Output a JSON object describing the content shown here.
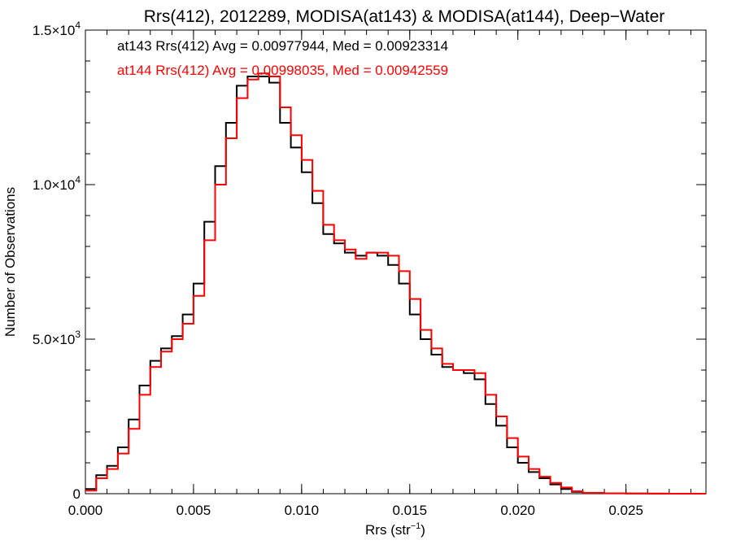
{
  "chart_data": {
    "type": "line",
    "title": "Rrs(412), 2012289, MODISA(at143) & MODISA(at144), Deep−Water",
    "xlabel_main": "Rrs (str",
    "xlabel_sup": "−1",
    "xlabel_close": ")",
    "ylabel": "Number of Observations",
    "xlim": [
      0.0,
      0.0287
    ],
    "ylim": [
      0,
      15000
    ],
    "x_ticks": [
      0.0,
      0.005,
      0.01,
      0.015,
      0.02,
      0.025
    ],
    "x_tick_labels": [
      "0.000",
      "0.005",
      "0.010",
      "0.015",
      "0.020",
      "0.025"
    ],
    "y_ticks": [
      {
        "value": 0,
        "mantissa": "0",
        "exp": ""
      },
      {
        "value": 5000,
        "mantissa": "5.0×10",
        "exp": "3"
      },
      {
        "value": 10000,
        "mantissa": "1.0×10",
        "exp": "4"
      },
      {
        "value": 15000,
        "mantissa": "1.5×10",
        "exp": "4"
      }
    ],
    "grid": false,
    "legend_position": "top-left",
    "series": [
      {
        "name": "at143",
        "color": "#000000",
        "annotation": "at143 Rrs(412) Avg = 0.00977944, Med = 0.00923314",
        "x": [
          0.0,
          0.0005,
          0.001,
          0.0015,
          0.002,
          0.0025,
          0.003,
          0.0035,
          0.004,
          0.0045,
          0.005,
          0.0055,
          0.006,
          0.0065,
          0.007,
          0.0075,
          0.008,
          0.0085,
          0.009,
          0.0095,
          0.01,
          0.0105,
          0.011,
          0.0115,
          0.012,
          0.0125,
          0.013,
          0.0135,
          0.014,
          0.0145,
          0.015,
          0.0155,
          0.016,
          0.0165,
          0.017,
          0.0175,
          0.018,
          0.0185,
          0.019,
          0.0195,
          0.02,
          0.0205,
          0.021,
          0.0215,
          0.022,
          0.0225,
          0.023,
          0.024,
          0.025,
          0.026,
          0.027,
          0.0287
        ],
        "y": [
          150,
          600,
          900,
          1500,
          2400,
          3500,
          4300,
          4700,
          5100,
          5800,
          6800,
          8800,
          10600,
          12000,
          13200,
          13500,
          13500,
          13300,
          12000,
          11200,
          10400,
          9400,
          8400,
          8100,
          7800,
          7700,
          7800,
          7700,
          7400,
          6800,
          5800,
          5000,
          4500,
          4100,
          4000,
          3900,
          3700,
          2900,
          2200,
          1500,
          1000,
          700,
          500,
          300,
          150,
          60,
          20,
          10,
          5,
          2,
          1,
          0
        ]
      },
      {
        "name": "at144",
        "color": "#ff0000",
        "annotation": "at144 Rrs(412) Avg = 0.00998035, Med = 0.00942559",
        "x": [
          0.0,
          0.0005,
          0.001,
          0.0015,
          0.002,
          0.0025,
          0.003,
          0.0035,
          0.004,
          0.0045,
          0.005,
          0.0055,
          0.006,
          0.0065,
          0.007,
          0.0075,
          0.008,
          0.0085,
          0.009,
          0.0095,
          0.01,
          0.0105,
          0.011,
          0.0115,
          0.012,
          0.0125,
          0.013,
          0.0135,
          0.014,
          0.0145,
          0.015,
          0.0155,
          0.016,
          0.0165,
          0.017,
          0.0175,
          0.018,
          0.0185,
          0.019,
          0.0195,
          0.02,
          0.0205,
          0.021,
          0.0215,
          0.022,
          0.0225,
          0.023,
          0.024,
          0.025,
          0.026,
          0.027,
          0.0287
        ],
        "y": [
          100,
          500,
          800,
          1300,
          2100,
          3200,
          4100,
          4600,
          5000,
          5500,
          6400,
          8200,
          10000,
          11500,
          12800,
          13400,
          13600,
          13500,
          12500,
          11600,
          10800,
          9800,
          8700,
          8200,
          7900,
          7600,
          7800,
          7800,
          7700,
          7200,
          6300,
          5300,
          4700,
          4200,
          4000,
          4000,
          3900,
          3200,
          2500,
          1800,
          1200,
          800,
          550,
          350,
          200,
          80,
          30,
          12,
          6,
          3,
          1,
          0
        ]
      }
    ]
  }
}
